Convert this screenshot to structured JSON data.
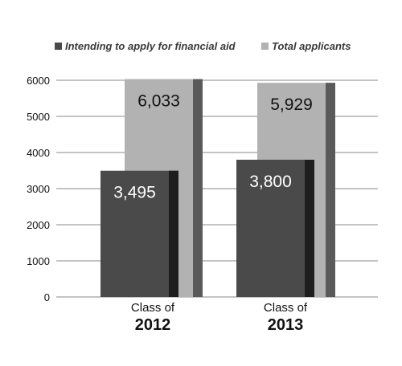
{
  "chart_data": {
    "type": "bar",
    "categories": [
      {
        "line1": "Class of",
        "line2": "2012"
      },
      {
        "line1": "Class of",
        "line2": "2013"
      }
    ],
    "series": [
      {
        "name": "Intending to apply for financial aid",
        "values": [
          3495,
          3800
        ],
        "labels": [
          "3,495",
          "3,800"
        ],
        "color": "#4a4a4a",
        "label_color": "#ffffff"
      },
      {
        "name": "Total applicants",
        "values": [
          6033,
          5929
        ],
        "labels": [
          "6,033",
          "5,929"
        ],
        "color": "#b2b2b2",
        "label_color": "#111111"
      }
    ],
    "y_ticks": [
      0,
      1000,
      2000,
      3000,
      4000,
      5000,
      6000
    ],
    "ylim": [
      0,
      6000
    ],
    "grid": true,
    "legend_position": "top",
    "title": "",
    "xlabel": "",
    "ylabel": ""
  }
}
